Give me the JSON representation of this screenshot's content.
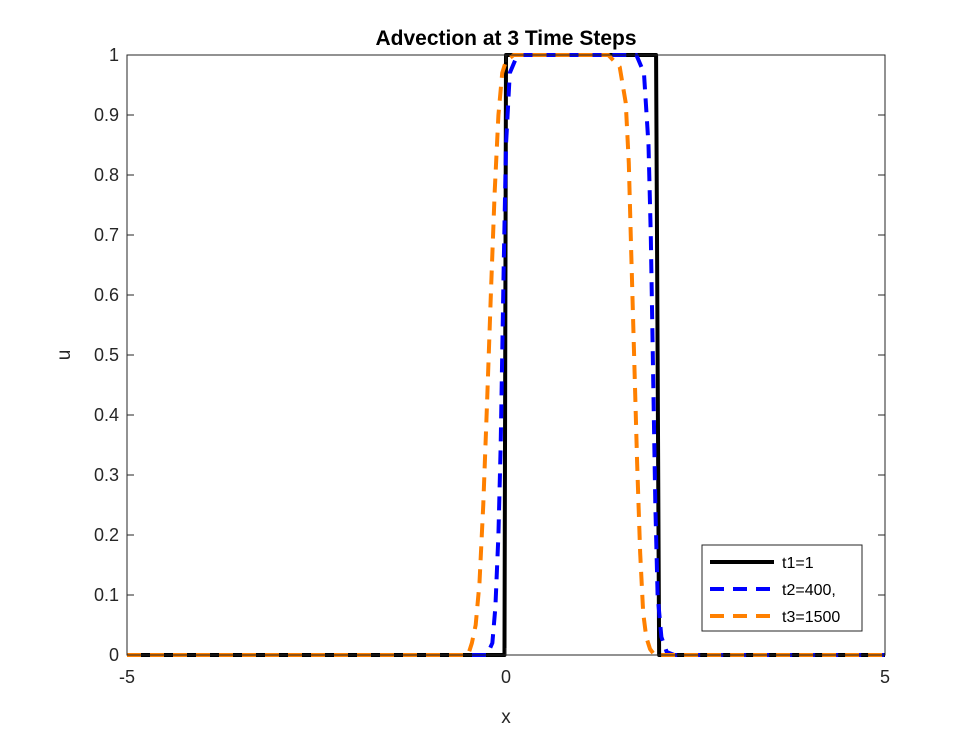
{
  "chart_data": {
    "type": "line",
    "title": "Advection at 3 Time Steps",
    "xlabel": "x",
    "ylabel": "u",
    "xlim": [
      -5,
      5
    ],
    "ylim": [
      0,
      1
    ],
    "xticks": [
      "-5",
      "0",
      "5"
    ],
    "yticks": [
      "0",
      "0.1",
      "0.2",
      "0.3",
      "0.4",
      "0.5",
      "0.6",
      "0.7",
      "0.8",
      "0.9",
      "1"
    ],
    "grid": false,
    "legend_position": "bottom-right",
    "series": [
      {
        "name": "t1=1",
        "color": "#000000",
        "style": "solid",
        "x": [
          -5,
          -0.02,
          0,
          1.98,
          2.02,
          5
        ],
        "y": [
          0,
          0,
          1,
          1,
          0,
          0
        ]
      },
      {
        "name": "t2=400,",
        "color": "#0000ff",
        "style": "dashed",
        "x": [
          -5,
          -0.25,
          -0.18,
          -0.14,
          -0.1,
          -0.07,
          -0.05,
          -0.03,
          0.0,
          0.05,
          0.15,
          1.72,
          1.82,
          1.88,
          1.91,
          1.93,
          1.95,
          1.97,
          2.0,
          2.05,
          2.12,
          2.22,
          5
        ],
        "y": [
          0,
          0,
          0.02,
          0.08,
          0.2,
          0.35,
          0.5,
          0.65,
          0.85,
          0.97,
          1,
          1,
          0.97,
          0.85,
          0.7,
          0.55,
          0.4,
          0.25,
          0.1,
          0.03,
          0.005,
          0,
          0
        ]
      },
      {
        "name": "t3=1500",
        "color": "#ff8000",
        "style": "dashed",
        "x": [
          -5,
          -0.5,
          -0.45,
          -0.4,
          -0.35,
          -0.3,
          -0.25,
          -0.2,
          -0.15,
          -0.1,
          -0.05,
          0.0,
          0.1,
          0.25,
          1.35,
          1.5,
          1.58,
          1.62,
          1.65,
          1.69,
          1.73,
          1.77,
          1.81,
          1.85,
          1.9,
          1.96,
          5
        ],
        "y": [
          0,
          0,
          0.02,
          0.05,
          0.12,
          0.25,
          0.42,
          0.6,
          0.77,
          0.9,
          0.97,
          0.99,
          1,
          1,
          1,
          0.98,
          0.92,
          0.82,
          0.68,
          0.5,
          0.32,
          0.17,
          0.07,
          0.03,
          0.01,
          0,
          0
        ]
      }
    ]
  }
}
